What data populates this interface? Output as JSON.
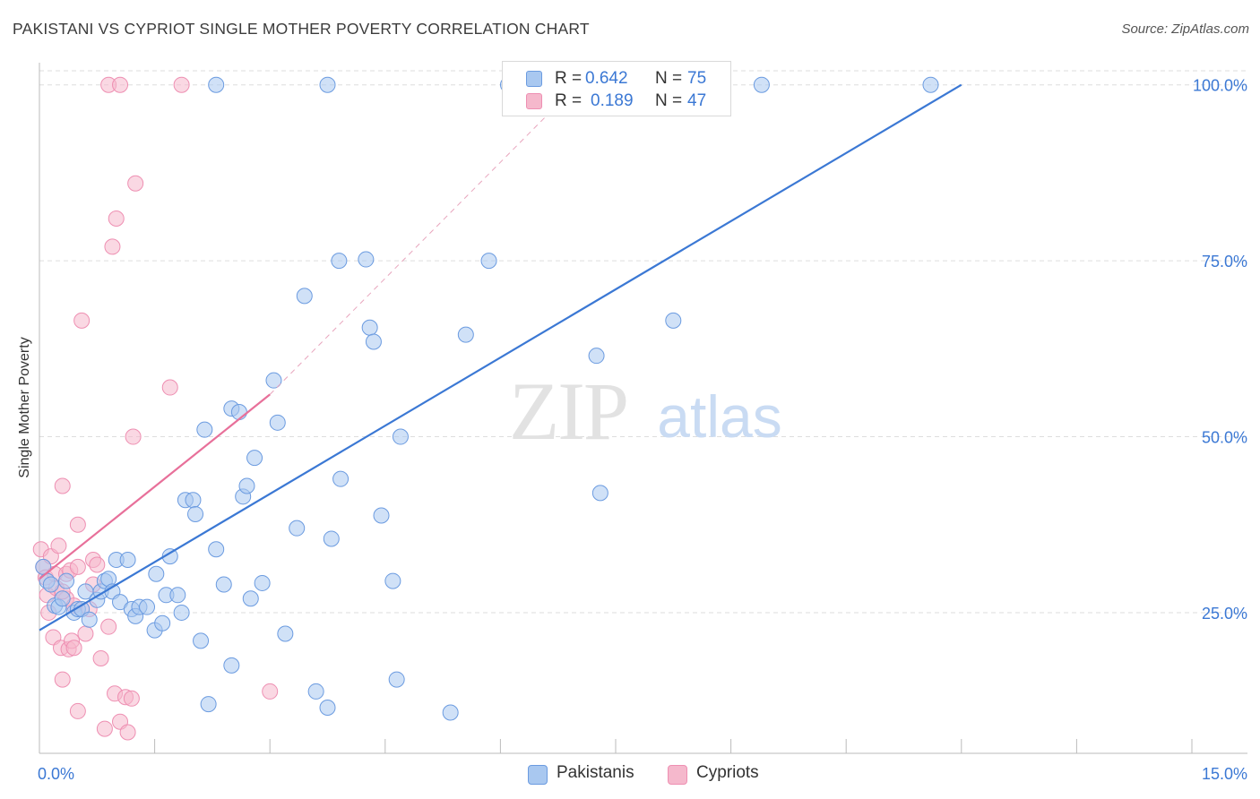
{
  "title": "PAKISTANI VS CYPRIOT SINGLE MOTHER POVERTY CORRELATION CHART",
  "source": "Source: ZipAtlas.com",
  "watermark": {
    "zip": "ZIP",
    "atlas": "atlas"
  },
  "colors": {
    "blue": "#3b78d4",
    "blue_fill": "#a9c8f0",
    "blue_stroke": "#6b9be0",
    "pink": "#e8709a",
    "pink_fill": "#f5b8cc",
    "pink_stroke": "#ee8fb2",
    "grid": "#dddddd",
    "tick_label": "#3b78d4"
  },
  "stats": {
    "rows": [
      {
        "r_label": "R =",
        "r_value": "0.642",
        "n_label": "N =",
        "n_value": "75"
      },
      {
        "r_label": "R =",
        "r_value": "0.189",
        "n_label": "N =",
        "n_value": "47"
      }
    ]
  },
  "chart_data": {
    "type": "scatter",
    "title": "PAKISTANI VS CYPRIOT SINGLE MOTHER POVERTY CORRELATION CHART",
    "xlabel": "",
    "ylabel": "Single Mother Poverty",
    "xlim": [
      0,
      15
    ],
    "ylim": [
      4.5,
      102
    ],
    "x_tick_labels": [
      "0.0%",
      "15.0%"
    ],
    "y_ticks": [
      25,
      50,
      75,
      100
    ],
    "y_tick_labels": [
      "25.0%",
      "50.0%",
      "75.0%",
      "100.0%"
    ],
    "legend_position": "bottom-center",
    "series": [
      {
        "name": "Pakistanis",
        "color": "#3b78d4",
        "trend": {
          "x": [
            0,
            12
          ],
          "y": [
            22.5,
            100
          ]
        },
        "points": [
          {
            "x": 0.05,
            "y": 31.5
          },
          {
            "x": 0.1,
            "y": 29.5
          },
          {
            "x": 0.15,
            "y": 29
          },
          {
            "x": 0.2,
            "y": 26
          },
          {
            "x": 0.25,
            "y": 25.8
          },
          {
            "x": 0.3,
            "y": 27
          },
          {
            "x": 0.35,
            "y": 29.5
          },
          {
            "x": 0.45,
            "y": 25
          },
          {
            "x": 0.5,
            "y": 25.5
          },
          {
            "x": 0.55,
            "y": 25.5
          },
          {
            "x": 0.6,
            "y": 28
          },
          {
            "x": 0.65,
            "y": 24
          },
          {
            "x": 0.75,
            "y": 26.8
          },
          {
            "x": 0.8,
            "y": 28
          },
          {
            "x": 0.85,
            "y": 29.5
          },
          {
            "x": 0.9,
            "y": 29.8
          },
          {
            "x": 0.95,
            "y": 28
          },
          {
            "x": 1.05,
            "y": 26.5
          },
          {
            "x": 1.0,
            "y": 32.5
          },
          {
            "x": 1.15,
            "y": 32.5
          },
          {
            "x": 1.2,
            "y": 25.5
          },
          {
            "x": 1.25,
            "y": 24.5
          },
          {
            "x": 1.3,
            "y": 25.8
          },
          {
            "x": 1.4,
            "y": 25.8
          },
          {
            "x": 1.5,
            "y": 22.5
          },
          {
            "x": 1.52,
            "y": 30.5
          },
          {
            "x": 1.6,
            "y": 23.5
          },
          {
            "x": 1.65,
            "y": 27.5
          },
          {
            "x": 1.7,
            "y": 33
          },
          {
            "x": 1.8,
            "y": 27.5
          },
          {
            "x": 1.85,
            "y": 25
          },
          {
            "x": 1.9,
            "y": 41
          },
          {
            "x": 2.0,
            "y": 41
          },
          {
            "x": 2.03,
            "y": 39
          },
          {
            "x": 2.1,
            "y": 21
          },
          {
            "x": 2.15,
            "y": 51
          },
          {
            "x": 2.2,
            "y": 12
          },
          {
            "x": 2.3,
            "y": 34
          },
          {
            "x": 2.4,
            "y": 29
          },
          {
            "x": 2.5,
            "y": 54
          },
          {
            "x": 2.5,
            "y": 17.5
          },
          {
            "x": 2.6,
            "y": 53.5
          },
          {
            "x": 2.65,
            "y": 41.5
          },
          {
            "x": 2.7,
            "y": 43
          },
          {
            "x": 2.75,
            "y": 27
          },
          {
            "x": 2.8,
            "y": 47
          },
          {
            "x": 2.9,
            "y": 29.2
          },
          {
            "x": 3.05,
            "y": 58
          },
          {
            "x": 3.1,
            "y": 52
          },
          {
            "x": 3.2,
            "y": 22
          },
          {
            "x": 3.35,
            "y": 37
          },
          {
            "x": 3.45,
            "y": 70
          },
          {
            "x": 3.6,
            "y": 13.8
          },
          {
            "x": 3.75,
            "y": 11.5
          },
          {
            "x": 3.8,
            "y": 35.5
          },
          {
            "x": 3.9,
            "y": 75
          },
          {
            "x": 3.92,
            "y": 44
          },
          {
            "x": 4.25,
            "y": 75.2
          },
          {
            "x": 4.3,
            "y": 65.5
          },
          {
            "x": 4.35,
            "y": 63.5
          },
          {
            "x": 4.45,
            "y": 38.8
          },
          {
            "x": 4.6,
            "y": 29.5
          },
          {
            "x": 4.65,
            "y": 15.5
          },
          {
            "x": 4.7,
            "y": 50
          },
          {
            "x": 5.35,
            "y": 10.8
          },
          {
            "x": 5.55,
            "y": 64.5
          },
          {
            "x": 5.85,
            "y": 75
          },
          {
            "x": 7.25,
            "y": 61.5
          },
          {
            "x": 7.3,
            "y": 42
          },
          {
            "x": 8.25,
            "y": 66.5
          },
          {
            "x": 2.3,
            "y": 100
          },
          {
            "x": 3.75,
            "y": 100
          },
          {
            "x": 6.1,
            "y": 100
          },
          {
            "x": 9.4,
            "y": 100
          },
          {
            "x": 11.6,
            "y": 100
          }
        ]
      },
      {
        "name": "Cypriots",
        "color": "#e8709a",
        "trend": {
          "x": [
            0,
            3.0
          ],
          "y": [
            29.8,
            56
          ]
        },
        "trend_dashed": {
          "x": [
            3.0,
            7.0
          ],
          "y": [
            56,
            100
          ]
        },
        "points": [
          {
            "x": 0.02,
            "y": 34
          },
          {
            "x": 0.05,
            "y": 31.5
          },
          {
            "x": 0.08,
            "y": 30
          },
          {
            "x": 0.1,
            "y": 27.5
          },
          {
            "x": 0.12,
            "y": 25
          },
          {
            "x": 0.15,
            "y": 33
          },
          {
            "x": 0.18,
            "y": 21.5
          },
          {
            "x": 0.2,
            "y": 30.5
          },
          {
            "x": 0.22,
            "y": 28.5
          },
          {
            "x": 0.25,
            "y": 34.5
          },
          {
            "x": 0.28,
            "y": 20
          },
          {
            "x": 0.3,
            "y": 15.5
          },
          {
            "x": 0.3,
            "y": 43
          },
          {
            "x": 0.35,
            "y": 30.5
          },
          {
            "x": 0.35,
            "y": 27
          },
          {
            "x": 0.38,
            "y": 19.8
          },
          {
            "x": 0.4,
            "y": 31
          },
          {
            "x": 0.42,
            "y": 21
          },
          {
            "x": 0.45,
            "y": 20
          },
          {
            "x": 0.45,
            "y": 26
          },
          {
            "x": 0.5,
            "y": 31.5
          },
          {
            "x": 0.5,
            "y": 11
          },
          {
            "x": 0.5,
            "y": 37.5
          },
          {
            "x": 0.55,
            "y": 66.5
          },
          {
            "x": 0.6,
            "y": 22
          },
          {
            "x": 0.65,
            "y": 25.5
          },
          {
            "x": 0.7,
            "y": 32.5
          },
          {
            "x": 0.75,
            "y": 31.8
          },
          {
            "x": 0.8,
            "y": 18.5
          },
          {
            "x": 0.85,
            "y": 8.5
          },
          {
            "x": 0.9,
            "y": 23
          },
          {
            "x": 0.95,
            "y": 77
          },
          {
            "x": 0.98,
            "y": 13.5
          },
          {
            "x": 1.0,
            "y": 81
          },
          {
            "x": 1.05,
            "y": 9.5
          },
          {
            "x": 1.12,
            "y": 13
          },
          {
            "x": 1.15,
            "y": 8
          },
          {
            "x": 1.2,
            "y": 12.8
          },
          {
            "x": 1.22,
            "y": 50
          },
          {
            "x": 1.25,
            "y": 86
          },
          {
            "x": 1.7,
            "y": 57
          },
          {
            "x": 3.0,
            "y": 13.8
          },
          {
            "x": 0.9,
            "y": 100
          },
          {
            "x": 1.05,
            "y": 100
          },
          {
            "x": 1.85,
            "y": 100
          },
          {
            "x": 0.7,
            "y": 29
          },
          {
            "x": 0.3,
            "y": 28
          }
        ]
      }
    ]
  },
  "legend": {
    "items": [
      "Pakistanis",
      "Cypriots"
    ]
  }
}
